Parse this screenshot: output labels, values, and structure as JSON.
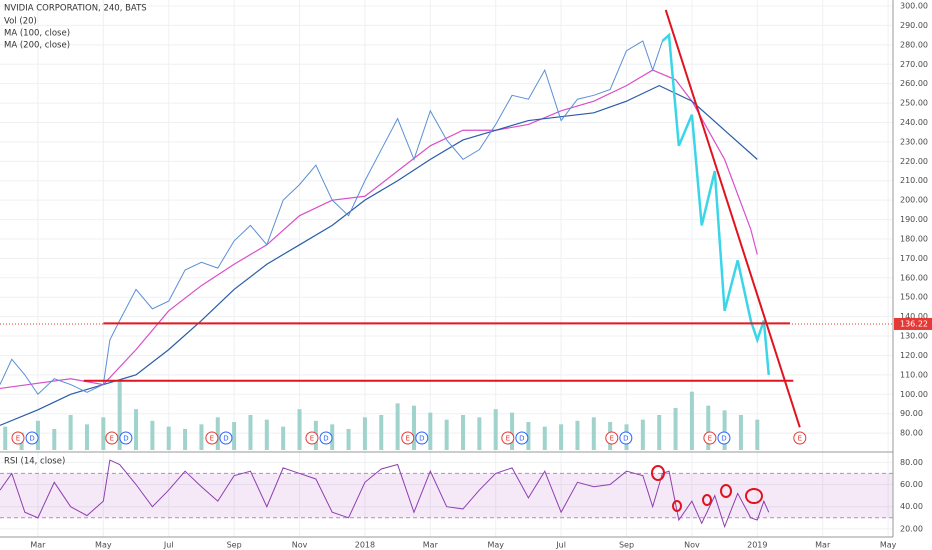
{
  "chart_data": {
    "type": "line",
    "title": "NVIDIA CORPORATION, 240, BATS",
    "indicators": [
      "Vol (20)",
      "MA (100, close)",
      "MA (200, close)"
    ],
    "xlim": [
      0.84,
      28.15
    ],
    "xticks": [
      {
        "value": 2,
        "label": "Mar"
      },
      {
        "value": 4,
        "label": "May"
      },
      {
        "value": 6,
        "label": "Jul"
      },
      {
        "value": 8,
        "label": "Sep"
      },
      {
        "value": 10,
        "label": "Nov"
      },
      {
        "value": 12,
        "label": "2018"
      },
      {
        "value": 14,
        "label": "Mar"
      },
      {
        "value": 16,
        "label": "May"
      },
      {
        "value": 18,
        "label": "Jul"
      },
      {
        "value": 20,
        "label": "Sep"
      },
      {
        "value": 22,
        "label": "Nov"
      },
      {
        "value": 24,
        "label": "2019"
      },
      {
        "value": 26,
        "label": "Mar"
      },
      {
        "value": 28,
        "label": "May"
      }
    ],
    "ylim": [
      71.3,
      303.1
    ],
    "yticks": [
      {
        "value": 80,
        "label": "80.00"
      },
      {
        "value": 90,
        "label": "90.00"
      },
      {
        "value": 100,
        "label": "100.00"
      },
      {
        "value": 110,
        "label": "110.00"
      },
      {
        "value": 120,
        "label": "120.00"
      },
      {
        "value": 130,
        "label": "130.00"
      },
      {
        "value": 140,
        "label": "140.00"
      },
      {
        "value": 150,
        "label": "150.00"
      },
      {
        "value": 160,
        "label": "160.00"
      },
      {
        "value": 170,
        "label": "170.00"
      },
      {
        "value": 180,
        "label": "180.00"
      },
      {
        "value": 190,
        "label": "190.00"
      },
      {
        "value": 200,
        "label": "200.00"
      },
      {
        "value": 210,
        "label": "210.00"
      },
      {
        "value": 220,
        "label": "220.00"
      },
      {
        "value": 230,
        "label": "230.00"
      },
      {
        "value": 240,
        "label": "240.00"
      },
      {
        "value": 250,
        "label": "250.00"
      },
      {
        "value": 260,
        "label": "260.00"
      },
      {
        "value": 270,
        "label": "270.00"
      },
      {
        "value": 280,
        "label": "280.00"
      },
      {
        "value": 290,
        "label": "290.00"
      },
      {
        "value": 300,
        "label": "300.00"
      }
    ],
    "last_price": {
      "value": 136.22,
      "label": "136.22",
      "color": "#e53935"
    },
    "price": {
      "color": "#5b8fd6",
      "x": [
        0.84,
        1.2,
        1.6,
        2.0,
        2.5,
        3.0,
        3.5,
        4.0,
        4.2,
        4.5,
        5.0,
        5.5,
        6.0,
        6.5,
        7.0,
        7.5,
        8.0,
        8.5,
        9.0,
        9.5,
        10.0,
        10.5,
        11.0,
        11.5,
        12.0,
        12.5,
        13.0,
        13.5,
        14.0,
        14.5,
        15.0,
        15.5,
        16.0,
        16.5,
        17.0,
        17.5,
        18.0,
        18.5,
        19.0,
        19.5,
        20.0,
        20.5,
        20.8,
        21.1,
        21.3,
        21.6,
        22.0,
        22.3,
        22.7,
        23.0,
        23.4,
        23.8,
        24.0,
        24.2,
        24.35
      ],
      "values": [
        105,
        118,
        110,
        100,
        108,
        105,
        101,
        105,
        128,
        138,
        154,
        144,
        148,
        164,
        168,
        165,
        179,
        187,
        177,
        200,
        208,
        218,
        200,
        192,
        210,
        226,
        242,
        221,
        246,
        231,
        221,
        226,
        239,
        254,
        252,
        267,
        241,
        252,
        254,
        257,
        277,
        282,
        267,
        282,
        285,
        228,
        244,
        187,
        215,
        143,
        169,
        138,
        128,
        138,
        110
      ]
    },
    "series": [
      {
        "name": "MA (100, close)",
        "color": "#d94fc9",
        "x": [
          0.84,
          3,
          4,
          5,
          6,
          7,
          8,
          9,
          10,
          11,
          12,
          13,
          14,
          15,
          16,
          17,
          18,
          19,
          20,
          20.8,
          21.5,
          22,
          23,
          23.8,
          24
        ],
        "values": [
          103,
          108,
          105,
          123,
          143,
          156,
          167,
          177,
          192,
          200,
          202,
          215,
          228,
          236,
          236,
          239,
          246,
          251,
          259,
          267,
          262,
          251,
          221,
          185,
          172
        ]
      },
      {
        "name": "MA (200, close)",
        "color": "#2a5caa",
        "x": [
          0.84,
          2,
          3,
          4,
          5,
          6,
          7,
          8,
          9,
          10,
          11,
          12,
          13,
          14,
          15,
          16,
          17,
          18,
          19,
          20,
          21,
          22,
          23,
          24
        ],
        "values": [
          84,
          92,
          100,
          105,
          110,
          123,
          138,
          154,
          167,
          177,
          187,
          200,
          210,
          221,
          231,
          236,
          241,
          243,
          245,
          251,
          259,
          251,
          236,
          221
        ]
      }
    ],
    "volume": {
      "name": "Vol (20)",
      "color": "#9fd3cc",
      "x": [
        1.0,
        1.5,
        2.0,
        2.5,
        3.0,
        3.5,
        4.0,
        4.5,
        5.0,
        5.5,
        6.0,
        6.5,
        7.0,
        7.5,
        8.0,
        8.5,
        9.0,
        9.5,
        10.0,
        10.5,
        11.0,
        11.5,
        12.0,
        12.5,
        13.0,
        13.5,
        14.0,
        14.5,
        15.0,
        15.5,
        16.0,
        16.5,
        17.0,
        17.5,
        18.0,
        18.5,
        19.0,
        19.5,
        20.0,
        20.5,
        21.0,
        21.5,
        22.0,
        22.5,
        23.0,
        23.5,
        24.0
      ],
      "values": [
        20,
        15,
        25,
        18,
        30,
        22,
        28,
        60,
        35,
        25,
        20,
        18,
        22,
        28,
        24,
        30,
        26,
        20,
        35,
        25,
        22,
        18,
        28,
        30,
        40,
        38,
        32,
        26,
        30,
        28,
        35,
        32,
        24,
        20,
        22,
        25,
        28,
        24,
        22,
        26,
        30,
        36,
        50,
        38,
        34,
        30,
        26
      ]
    },
    "events": [
      {
        "x": 1.39,
        "label": "E",
        "color": "#e53935"
      },
      {
        "x": 1.82,
        "label": "D",
        "color": "#2962ff"
      },
      {
        "x": 4.26,
        "label": "E",
        "color": "#e53935"
      },
      {
        "x": 4.69,
        "label": "D",
        "color": "#2962ff"
      },
      {
        "x": 7.32,
        "label": "E",
        "color": "#e53935"
      },
      {
        "x": 7.75,
        "label": "D",
        "color": "#2962ff"
      },
      {
        "x": 10.38,
        "label": "E",
        "color": "#e53935"
      },
      {
        "x": 10.81,
        "label": "D",
        "color": "#2962ff"
      },
      {
        "x": 13.31,
        "label": "E",
        "color": "#e53935"
      },
      {
        "x": 13.74,
        "label": "D",
        "color": "#2962ff"
      },
      {
        "x": 16.37,
        "label": "E",
        "color": "#e53935"
      },
      {
        "x": 16.8,
        "label": "D",
        "color": "#2962ff"
      },
      {
        "x": 19.55,
        "label": "E",
        "color": "#e53935"
      },
      {
        "x": 19.98,
        "label": "D",
        "color": "#2962ff"
      },
      {
        "x": 22.55,
        "label": "E",
        "color": "#e53935"
      },
      {
        "x": 22.98,
        "label": "D",
        "color": "#2962ff"
      },
      {
        "x": 25.3,
        "label": "E",
        "color": "#e53935"
      }
    ],
    "levels": {
      "color": "#e0141e",
      "x": [
        [
          4.0,
          25.0
        ],
        [
          3.4,
          25.1
        ]
      ],
      "values": [
        136.5,
        107
      ]
    },
    "trendline": {
      "color": "#e0141e",
      "x": [
        21.2,
        25.3
      ],
      "values": [
        298,
        83
      ]
    },
    "highlight": {
      "color": "#3ad6e8",
      "x": [
        21.1,
        21.3,
        21.6,
        22.0,
        22.3,
        22.7,
        23.0,
        23.4,
        23.8,
        24.0,
        24.2,
        24.35
      ],
      "values": [
        282,
        285,
        228,
        244,
        187,
        215,
        143,
        169,
        138,
        128,
        138,
        110
      ]
    },
    "rsi": {
      "name": "RSI (14, close)",
      "color": "#8e3fb0",
      "ylim": [
        13.6,
        88.4
      ],
      "yticks": [
        {
          "value": 20,
          "label": "20.00"
        },
        {
          "value": 40,
          "label": "40.00"
        },
        {
          "value": 60,
          "label": "60.00"
        },
        {
          "value": 80,
          "label": "80.00"
        }
      ],
      "band": [
        30,
        70
      ],
      "x": [
        0.84,
        1.2,
        1.6,
        2.0,
        2.5,
        3.0,
        3.5,
        4.0,
        4.2,
        4.5,
        5.0,
        5.5,
        6.0,
        6.5,
        7.0,
        7.5,
        8.0,
        8.5,
        9.0,
        9.5,
        10.0,
        10.5,
        11.0,
        11.5,
        12.0,
        12.5,
        13.0,
        13.5,
        14.0,
        14.5,
        15.0,
        15.5,
        16.0,
        16.5,
        17.0,
        17.5,
        18.0,
        18.5,
        19.0,
        19.5,
        20.0,
        20.5,
        20.8,
        21.1,
        21.3,
        21.6,
        22.0,
        22.3,
        22.7,
        23.0,
        23.4,
        23.8,
        24.0,
        24.2,
        24.35
      ],
      "values": [
        55,
        70,
        35,
        30,
        62,
        40,
        32,
        45,
        82,
        78,
        60,
        40,
        55,
        72,
        58,
        45,
        68,
        72,
        40,
        75,
        70,
        65,
        35,
        30,
        62,
        74,
        78,
        35,
        72,
        40,
        38,
        55,
        70,
        75,
        48,
        72,
        35,
        62,
        58,
        60,
        72,
        68,
        40,
        70,
        72,
        28,
        45,
        25,
        50,
        22,
        52,
        30,
        28,
        45,
        35
      ]
    }
  }
}
